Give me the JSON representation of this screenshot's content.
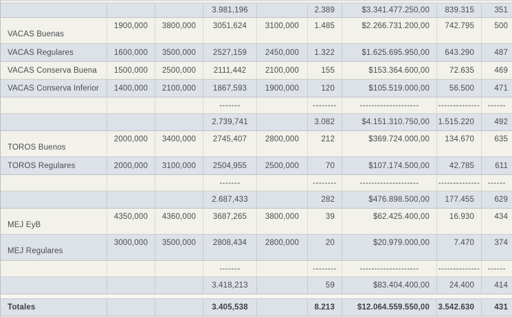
{
  "colors": {
    "row_cream": "#f2f1ea",
    "row_blue_gray": "#dde1e8",
    "text": "#4a4c50"
  },
  "rows": [
    {
      "id": "prev-subtotal",
      "kind": "subtotal",
      "cells": [
        "",
        "",
        "",
        "3.981,196",
        "",
        "2.389",
        "$3.341.477.250,00",
        "839.315",
        "351"
      ]
    },
    {
      "id": "vacas-buenas",
      "kind": "data-tall",
      "cells": [
        "VACAS Buenas",
        "1900,000",
        "3800,000",
        "3051,624",
        "3100,000",
        "1.485",
        "$2.266.731.200,00",
        "742.795",
        "500"
      ]
    },
    {
      "id": "vacas-regulares",
      "kind": "data",
      "cells": [
        "VACAS Regulares",
        "1600,000",
        "3500,000",
        "2527,159",
        "2450,000",
        "1.322",
        "$1.625.695.950,00",
        "643.290",
        "487"
      ]
    },
    {
      "id": "vacas-conserva-buena",
      "kind": "data",
      "cells": [
        "VACAS Conserva Buena",
        "1500,000",
        "2500,000",
        "2111,442",
        "2100,000",
        "155",
        "$153.364.600,00",
        "72.635",
        "469"
      ]
    },
    {
      "id": "vacas-conserva-inferior",
      "kind": "data",
      "cells": [
        "VACAS Conserva Inferior",
        "1400,000",
        "2100,000",
        "1867,593",
        "1900,000",
        "120",
        "$105.519.000,00",
        "56.500",
        "471"
      ]
    },
    {
      "id": "vacas-dashes",
      "kind": "dashes",
      "cells": [
        "",
        "",
        "",
        "-------",
        "",
        "--------",
        "--------------------",
        "--------------",
        "------"
      ]
    },
    {
      "id": "vacas-subtotal",
      "kind": "subtotal",
      "cells": [
        "",
        "",
        "",
        "2.739,741",
        "",
        "3.082",
        "$4.151.310.750,00",
        "1.515.220",
        "492"
      ]
    },
    {
      "id": "toros-buenos",
      "kind": "data-tall",
      "cells": [
        "TOROS Buenos",
        "2000,000",
        "3400,000",
        "2745,407",
        "2800,000",
        "212",
        "$369.724.000,00",
        "134.670",
        "635"
      ]
    },
    {
      "id": "toros-regulares",
      "kind": "data",
      "cells": [
        "TOROS Regulares",
        "2000,000",
        "3100,000",
        "2504,955",
        "2500,000",
        "70",
        "$107.174.500,00",
        "42.785",
        "611"
      ]
    },
    {
      "id": "toros-dashes",
      "kind": "dashes",
      "cells": [
        "",
        "",
        "",
        "-------",
        "",
        "--------",
        "--------------------",
        "--------------",
        "------"
      ]
    },
    {
      "id": "toros-subtotal",
      "kind": "subtotal",
      "cells": [
        "",
        "",
        "",
        "2.687,433",
        "",
        "282",
        "$476.898.500,00",
        "177.455",
        "629"
      ]
    },
    {
      "id": "mej-eyb",
      "kind": "data-tall",
      "cells": [
        "MEJ EyB",
        "4350,000",
        "4360,000",
        "3687,265",
        "3800,000",
        "39",
        "$62.425.400,00",
        "16.930",
        "434"
      ]
    },
    {
      "id": "mej-regulares",
      "kind": "data-tall",
      "cells": [
        "MEJ Regulares",
        "3000,000",
        "3500,000",
        "2808,434",
        "2800,000",
        "20",
        "$20.979.000,00",
        "7.470",
        "374"
      ]
    },
    {
      "id": "mej-dashes",
      "kind": "dashes",
      "cells": [
        "",
        "",
        "",
        "-------",
        "",
        "--------",
        "--------------------",
        "--------------",
        "------"
      ]
    },
    {
      "id": "mej-subtotal",
      "kind": "subtotal",
      "cells": [
        "",
        "",
        "",
        "3.418,213",
        "",
        "59",
        "$83.404.400,00",
        "24.400",
        "414"
      ]
    }
  ],
  "totals_row": {
    "id": "totales",
    "kind": "totals",
    "cells": [
      "Totales",
      "",
      "",
      "3.405,538",
      "",
      "8.213",
      "$12.064.559.550,00",
      "3.542.630",
      "431"
    ]
  }
}
